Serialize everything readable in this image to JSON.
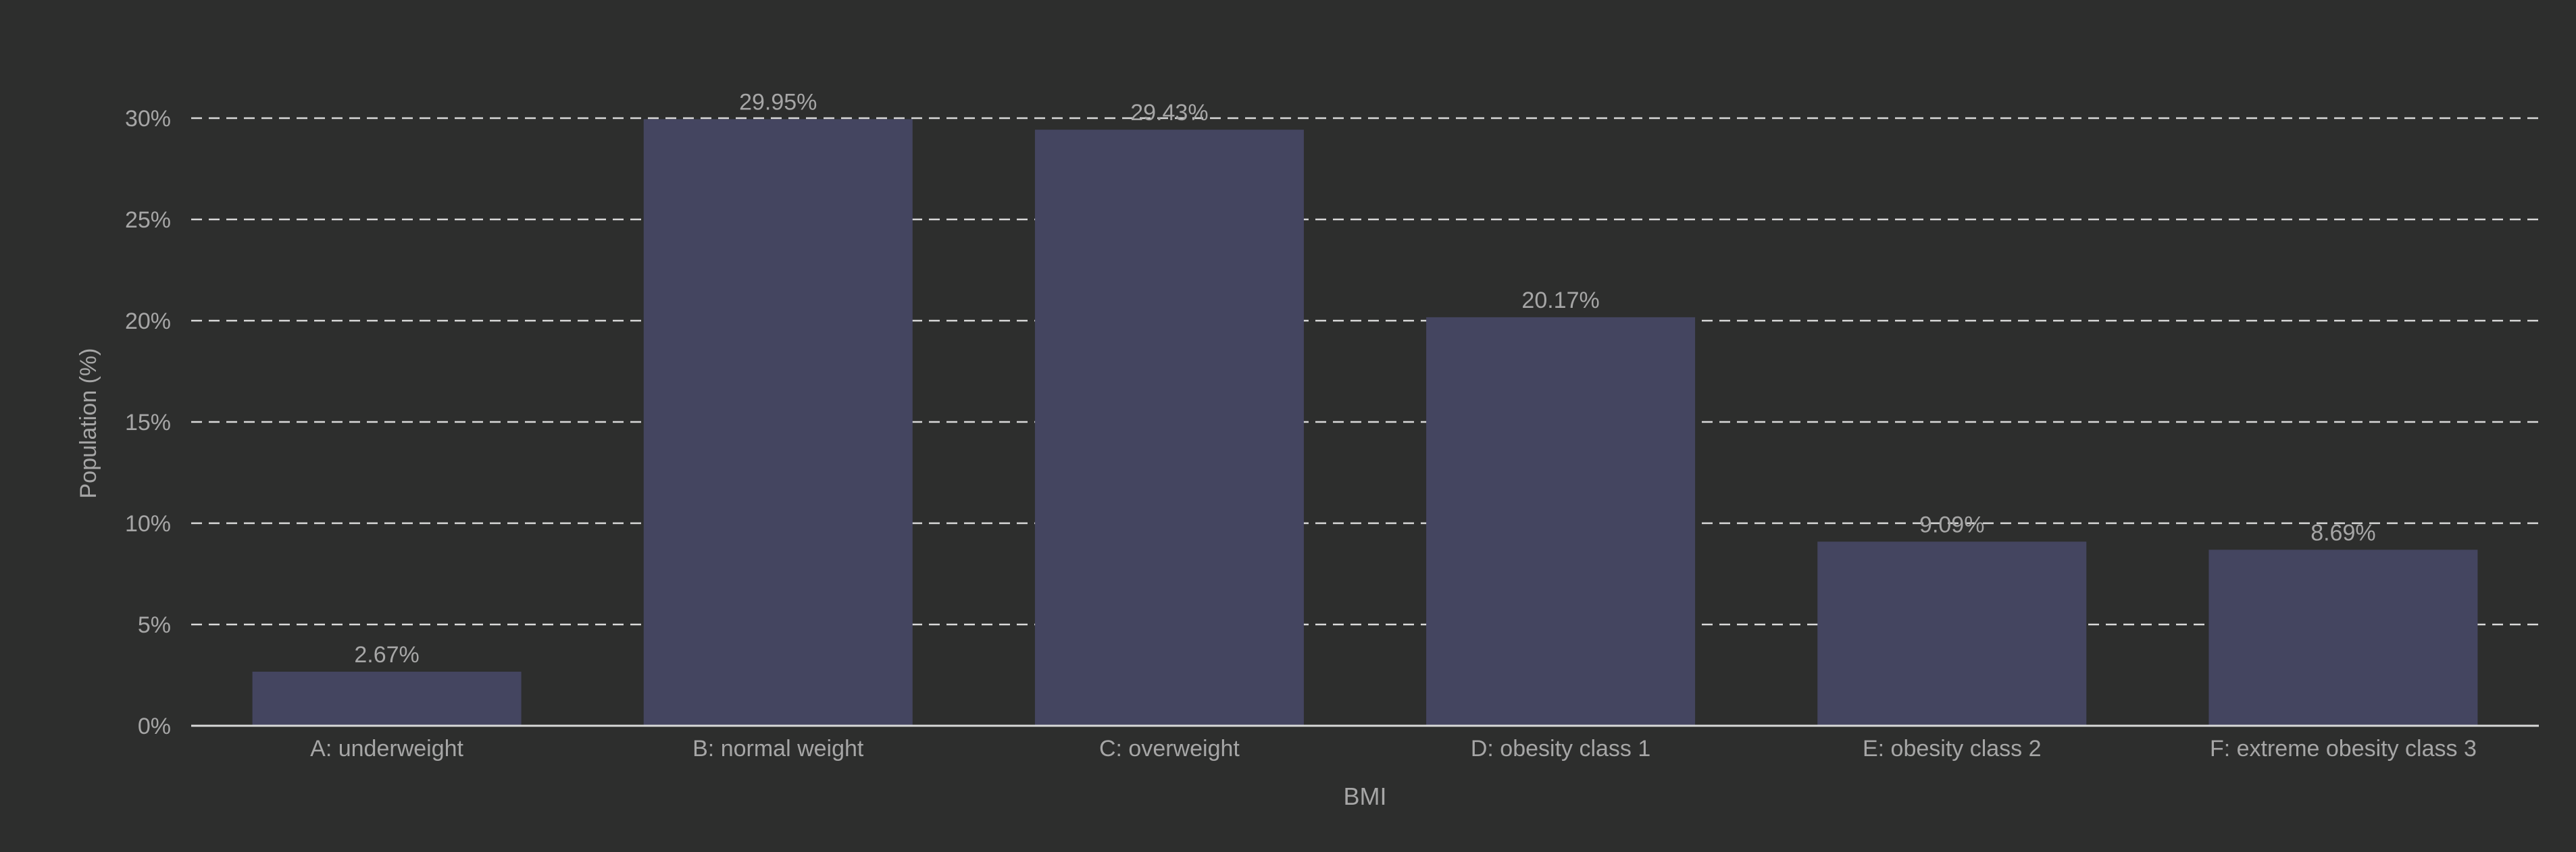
{
  "colors": {
    "background": "#2d2e2d",
    "bar": "#444560",
    "grid": "#d9d9d9",
    "axis": "#d9d9d9",
    "text": "#a6a6a6",
    "label_text": "#a6a6a6"
  },
  "chart_data": {
    "type": "bar",
    "categories": [
      "A: underweight",
      "B: normal weight",
      "C: overweight",
      "D: obesity class 1",
      "E: obesity class 2",
      "F: extreme obesity class 3"
    ],
    "values": [
      2.67,
      29.95,
      29.43,
      20.17,
      9.09,
      8.69
    ],
    "data_labels": [
      "2.67%",
      "29.95%",
      "29.43%",
      "20.17%",
      "9.09%",
      "8.69%"
    ],
    "xlabel": "BMI",
    "ylabel": "Population (%)",
    "ylim": [
      0,
      30
    ],
    "yticks": [
      0,
      5,
      10,
      15,
      20,
      25,
      30
    ],
    "ytick_labels": [
      "0%",
      "5%",
      "10%",
      "15%",
      "20%",
      "25%",
      "30%"
    ],
    "grid": true,
    "grid_style": "dashed"
  }
}
